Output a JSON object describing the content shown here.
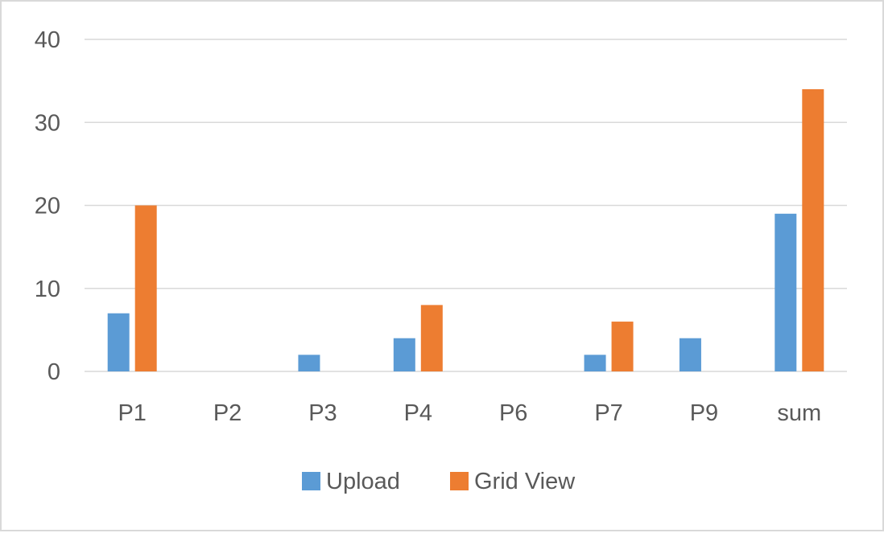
{
  "chart_data": {
    "type": "bar",
    "categories": [
      "P1",
      "P2",
      "P3",
      "P4",
      "P6",
      "P7",
      "P9",
      "sum"
    ],
    "series": [
      {
        "name": "Upload",
        "color": "#5b9bd5",
        "values": [
          7,
          0,
          2,
          4,
          0,
          2,
          4,
          19
        ]
      },
      {
        "name": "Grid View",
        "color": "#ed7d31",
        "values": [
          20,
          0,
          0,
          8,
          0,
          6,
          0,
          34
        ]
      }
    ],
    "yticks": [
      "0",
      "10",
      "20",
      "30",
      "40"
    ],
    "ylim": [
      0,
      40
    ],
    "grid": true,
    "legend_position": "bottom",
    "title": "",
    "xlabel": "",
    "ylabel": ""
  }
}
